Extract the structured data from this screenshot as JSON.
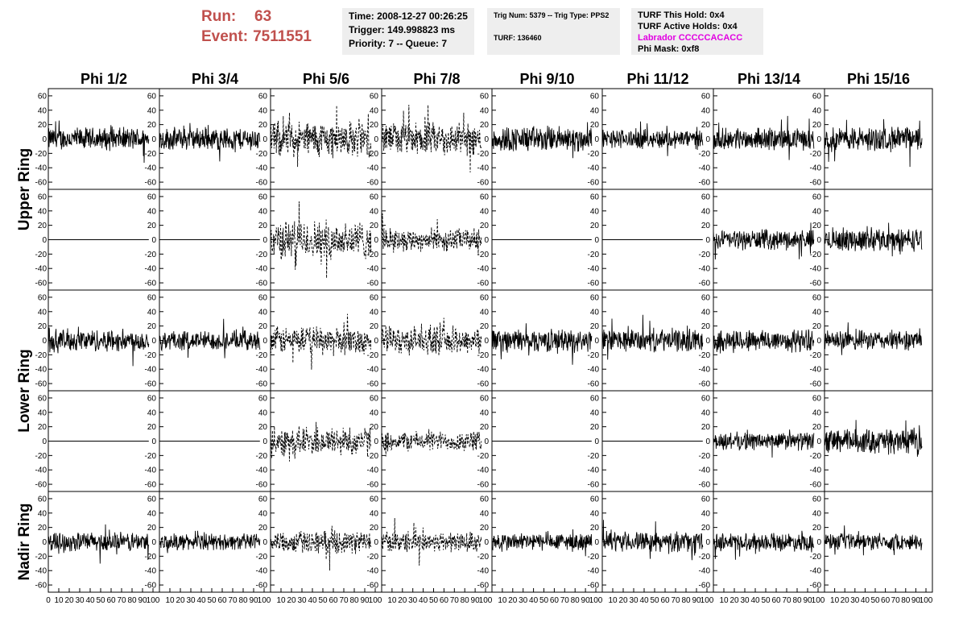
{
  "header": {
    "run_label": "Run:",
    "run_value": "63",
    "event_label": "Event:",
    "event_value": "7511551"
  },
  "info_box_1": {
    "time": "Time: 2008-12-27 00:26:25",
    "trigger": "Trigger: 149.998823 ms",
    "priority": "Priority: 7 -- Queue: 7"
  },
  "info_box_2": {
    "trig": "Trig Num: 5379 -- Trig Type: PPS2",
    "turf": "TURF: 136460"
  },
  "info_box_3": {
    "this_hold": "TURF This Hold: 0x4",
    "active_holds": "TURF Active Holds: 0x4",
    "labrador": "Labrador CCCCCACACC",
    "phi_mask": "Phi Mask: 0xf8"
  },
  "colors": {
    "run_text": "#c0504d",
    "labrador_text": "#e100e1",
    "info_bg": "#eeeeee"
  },
  "chart_data": {
    "type": "line",
    "columns": [
      "Phi 1/2",
      "Phi 3/4",
      "Phi 5/6",
      "Phi 7/8",
      "Phi 9/10",
      "Phi 11/12",
      "Phi 13/14",
      "Phi 15/16"
    ],
    "rings": [
      "Upper Ring",
      "Lower Ring",
      "Nadir Ring"
    ],
    "x_ticks": [
      "0",
      "10",
      "20",
      "30",
      "40",
      "50",
      "60",
      "70",
      "80",
      "90",
      "100"
    ],
    "y_ticks": [
      "60",
      "40",
      "20",
      "0",
      "-20",
      "-40",
      "-60"
    ],
    "xlim": [
      0,
      100
    ],
    "ylim": [
      -70,
      70
    ],
    "rows": [
      {
        "ring": "Upper Ring",
        "sub": 1,
        "amplitude": [
          14,
          14,
          22,
          20,
          16,
          12,
          13,
          15
        ],
        "style": [
          "solid",
          "solid",
          "dashed",
          "dashed",
          "solid",
          "solid",
          "solid",
          "solid"
        ]
      },
      {
        "ring": "Upper Ring",
        "sub": 2,
        "amplitude": [
          0,
          0,
          24,
          14,
          0,
          0,
          12,
          14
        ],
        "style": [
          "solid",
          "solid",
          "dashed",
          "dashed",
          "solid",
          "solid",
          "solid",
          "solid"
        ]
      },
      {
        "ring": "Lower Ring",
        "sub": 1,
        "amplitude": [
          14,
          12,
          17,
          17,
          14,
          14,
          14,
          12
        ],
        "style": [
          "solid",
          "solid",
          "dashed",
          "dashed",
          "solid",
          "solid",
          "solid",
          "solid"
        ]
      },
      {
        "ring": "Lower Ring",
        "sub": 2,
        "amplitude": [
          0,
          0,
          18,
          12,
          0,
          0,
          11,
          15
        ],
        "style": [
          "solid",
          "solid",
          "dashed",
          "dashed",
          "solid",
          "solid",
          "solid",
          "solid"
        ]
      },
      {
        "ring": "Nadir Ring",
        "sub": 1,
        "amplitude": [
          12,
          10,
          14,
          13,
          11,
          12,
          11,
          10
        ],
        "style": [
          "solid",
          "solid",
          "dashed",
          "dashed",
          "solid",
          "solid",
          "solid",
          "solid"
        ]
      }
    ]
  }
}
